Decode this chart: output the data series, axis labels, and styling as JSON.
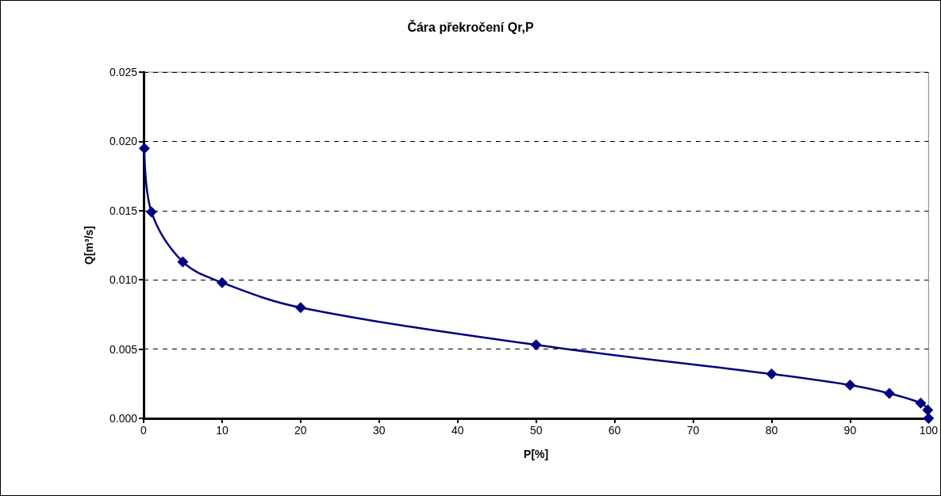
{
  "chart_data": {
    "type": "line",
    "title": "Čára překročení Qr,P",
    "xlabel": "P[%]",
    "ylabel": "Q[m³/s]",
    "x": [
      0.1,
      1,
      5,
      10,
      20,
      50,
      80,
      90,
      95,
      99,
      99.9,
      100
    ],
    "series": [
      {
        "color": "#000080",
        "values": [
          0.0195,
          0.0149,
          0.0113,
          0.0098,
          0.008,
          0.0053,
          0.0032,
          0.0024,
          0.0018,
          0.0011,
          0.0006,
          0.0
        ]
      }
    ],
    "xlim": [
      0,
      100
    ],
    "xticks": [
      0,
      10,
      20,
      30,
      40,
      50,
      60,
      70,
      80,
      90,
      100
    ],
    "ylim": [
      0,
      0.025
    ],
    "yticks": [
      {
        "value": 0,
        "label": "0.000"
      },
      {
        "value": 0.005,
        "label": "0.005"
      },
      {
        "value": 0.01,
        "label": "0.010"
      },
      {
        "value": 0.015,
        "label": "0.015"
      },
      {
        "value": 0.02,
        "label": "0.020"
      },
      {
        "value": 0.025,
        "label": "0.025"
      }
    ],
    "grid": "y",
    "marker": "diamond",
    "line_style": "solid"
  }
}
